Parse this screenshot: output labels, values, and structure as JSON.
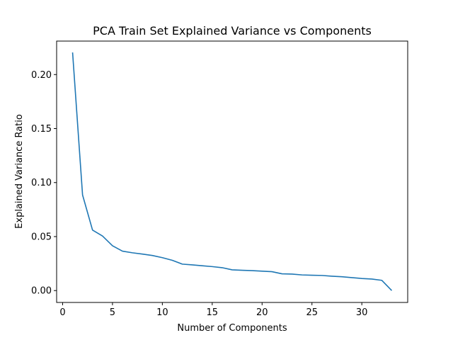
{
  "chart_data": {
    "type": "line",
    "title": "PCA Train Set Explained Variance vs Components",
    "xlabel": "Number of Components",
    "ylabel": "Explained Variance Ratio",
    "xlim": [
      -0.6,
      34.6
    ],
    "ylim": [
      -0.011,
      0.231
    ],
    "xticks": [
      0,
      5,
      10,
      15,
      20,
      25,
      30
    ],
    "yticks": [
      "0.00",
      "0.05",
      "0.10",
      "0.15",
      "0.20"
    ],
    "grid": false,
    "series": [
      {
        "color": "#1f77b4",
        "x": [
          1,
          2,
          3,
          4,
          5,
          6,
          7,
          8,
          9,
          10,
          11,
          12,
          13,
          14,
          15,
          16,
          17,
          18,
          19,
          20,
          21,
          22,
          23,
          24,
          25,
          26,
          27,
          28,
          29,
          30,
          31,
          32,
          33
        ],
        "values": [
          0.2205,
          0.0885,
          0.056,
          0.0505,
          0.0415,
          0.0365,
          0.035,
          0.0338,
          0.0325,
          0.0305,
          0.028,
          0.0245,
          0.0238,
          0.023,
          0.0222,
          0.0212,
          0.0192,
          0.0188,
          0.0185,
          0.018,
          0.0175,
          0.0155,
          0.0153,
          0.0145,
          0.0142,
          0.014,
          0.0133,
          0.0128,
          0.012,
          0.0112,
          0.0107,
          0.0095,
          0.0
        ]
      }
    ]
  }
}
